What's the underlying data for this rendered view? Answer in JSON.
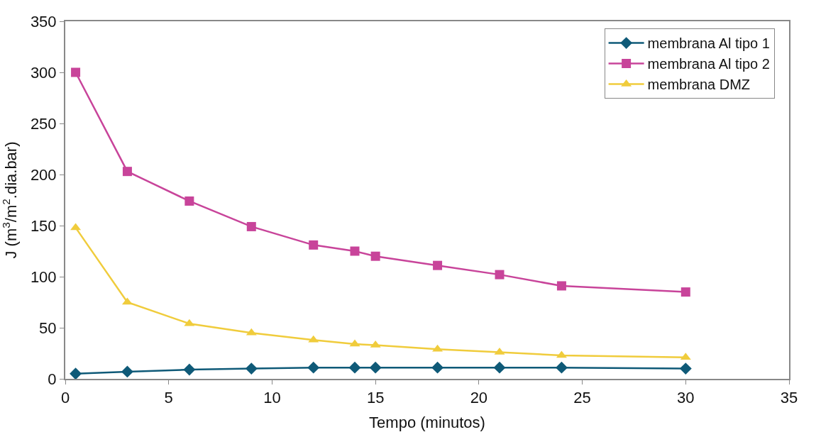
{
  "chart_data": {
    "type": "line",
    "xlabel": "Tempo (minutos)",
    "ylabel": "J (m$^{3}$/m$^{2}$.dia.bar)",
    "x": [
      0.5,
      3,
      6,
      9,
      12,
      14,
      15,
      18,
      21,
      24,
      30
    ],
    "series": [
      {
        "name": "membrana Al tipo 1",
        "color": "#0f5a78",
        "marker": "diamond",
        "values": [
          5,
          7,
          9,
          10,
          11,
          11,
          11,
          11,
          11,
          11,
          10
        ]
      },
      {
        "name": "membrana Al tipo 2",
        "color": "#c8449a",
        "marker": "square",
        "values": [
          300,
          203,
          174,
          149,
          131,
          125,
          120,
          111,
          102,
          91,
          85
        ]
      },
      {
        "name": "membrana DMZ",
        "color": "#f0cc3c",
        "marker": "triangle",
        "values": [
          148,
          75,
          54,
          45,
          38,
          34,
          33,
          29,
          26,
          23,
          21
        ]
      }
    ],
    "xlim": [
      0,
      35
    ],
    "xticks": [
      0,
      5,
      10,
      15,
      20,
      25,
      30,
      35
    ],
    "ylim": [
      0,
      350
    ],
    "yticks": [
      0,
      50,
      100,
      150,
      200,
      250,
      300,
      350
    ],
    "legend": "top right",
    "line_style": "solid"
  }
}
